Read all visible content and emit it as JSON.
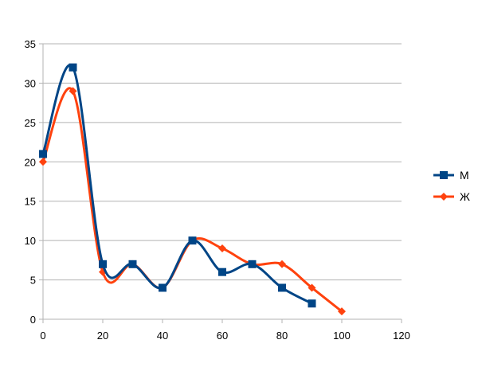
{
  "chart_data": {
    "type": "line",
    "title": "",
    "xlabel": "",
    "ylabel": "",
    "xlim": [
      0,
      120
    ],
    "ylim": [
      0,
      35
    ],
    "x_ticks": [
      0,
      20,
      40,
      60,
      80,
      100,
      120
    ],
    "y_ticks": [
      0,
      5,
      10,
      15,
      20,
      25,
      30,
      35
    ],
    "grid": "horizontal",
    "smooth": true,
    "legend": "right",
    "series": [
      {
        "name": "М",
        "color": "#004586",
        "marker": "square",
        "x": [
          0,
          10,
          20,
          30,
          40,
          50,
          60,
          70,
          80,
          90
        ],
        "y": [
          21,
          32,
          7,
          7,
          4,
          10,
          6,
          7,
          4,
          2
        ]
      },
      {
        "name": "Ж",
        "color": "#ff420e",
        "marker": "diamond",
        "x": [
          0,
          10,
          20,
          30,
          40,
          50,
          60,
          70,
          80,
          90,
          100
        ],
        "y": [
          20,
          29,
          6,
          7,
          4,
          10,
          9,
          7,
          7,
          4,
          1
        ]
      }
    ]
  }
}
